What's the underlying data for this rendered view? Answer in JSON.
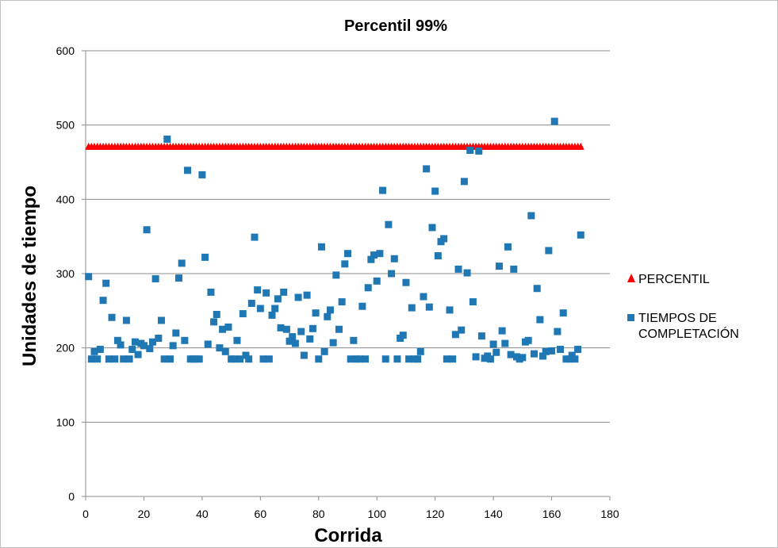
{
  "chart_data": {
    "type": "scatter",
    "title": "Percentil 99%",
    "xlabel": "Corrida",
    "ylabel": "Unidades de tiempo",
    "xlim": [
      0,
      180
    ],
    "ylim": [
      0,
      600
    ],
    "xticks": [
      0,
      20,
      40,
      60,
      80,
      100,
      120,
      140,
      160,
      180
    ],
    "yticks": [
      0,
      100,
      200,
      300,
      400,
      500,
      600
    ],
    "grid": "horizontal",
    "legend": "right",
    "series": [
      {
        "name": "PERCENTIL",
        "marker": "triangle",
        "color": "#ff0000",
        "x_start": 1,
        "x_end": 170,
        "constant_y": 471
      },
      {
        "name": "TIEMPOS DE COMPLETACIÓN",
        "marker": "square",
        "color": "#1f77b4",
        "x": [
          1,
          2,
          3,
          4,
          5,
          6,
          7,
          8,
          9,
          10,
          11,
          12,
          13,
          14,
          15,
          16,
          17,
          18,
          19,
          20,
          21,
          22,
          23,
          24,
          25,
          26,
          27,
          28,
          29,
          30,
          31,
          32,
          33,
          34,
          35,
          36,
          37,
          38,
          39,
          40,
          41,
          42,
          43,
          44,
          45,
          46,
          47,
          48,
          49,
          50,
          51,
          52,
          53,
          54,
          55,
          56,
          57,
          58,
          59,
          60,
          61,
          62,
          63,
          64,
          65,
          66,
          67,
          68,
          69,
          70,
          71,
          72,
          73,
          74,
          75,
          76,
          77,
          78,
          79,
          80,
          81,
          82,
          83,
          84,
          85,
          86,
          87,
          88,
          89,
          90,
          91,
          92,
          93,
          94,
          95,
          96,
          97,
          98,
          99,
          100,
          101,
          102,
          103,
          104,
          105,
          106,
          107,
          108,
          109,
          110,
          111,
          112,
          113,
          114,
          115,
          116,
          117,
          118,
          119,
          120,
          121,
          122,
          123,
          124,
          125,
          126,
          127,
          128,
          129,
          130,
          131,
          132,
          133,
          134,
          135,
          136,
          137,
          138,
          139,
          140,
          141,
          142,
          143,
          144,
          145,
          146,
          147,
          148,
          149,
          150,
          151,
          152,
          153,
          154,
          155,
          156,
          157,
          158,
          159,
          160,
          161,
          162,
          163,
          164,
          165,
          166,
          167,
          168,
          169,
          170
        ],
        "y": [
          296,
          185,
          195,
          185,
          198,
          264,
          287,
          185,
          241,
          185,
          210,
          204,
          185,
          237,
          185,
          198,
          208,
          191,
          206,
          203,
          359,
          199,
          208,
          293,
          213,
          237,
          185,
          481,
          185,
          203,
          220,
          294,
          314,
          210,
          439,
          185,
          185,
          185,
          185,
          433,
          322,
          205,
          275,
          235,
          245,
          200,
          225,
          195,
          228,
          185,
          185,
          210,
          185,
          246,
          190,
          185,
          260,
          349,
          278,
          253,
          185,
          274,
          185,
          244,
          253,
          266,
          227,
          275,
          225,
          209,
          215,
          206,
          268,
          222,
          190,
          271,
          212,
          226,
          247,
          185,
          336,
          195,
          242,
          251,
          207,
          298,
          225,
          262,
          313,
          327,
          185,
          210,
          185,
          185,
          256,
          185,
          281,
          319,
          325,
          290,
          327,
          412,
          185,
          366,
          300,
          320,
          185,
          213,
          217,
          288,
          185,
          254,
          185,
          185,
          195,
          269,
          441,
          255,
          362,
          411,
          324,
          343,
          347,
          185,
          251,
          185,
          218,
          306,
          224,
          424,
          301,
          466,
          262,
          188,
          465,
          216,
          186,
          189,
          185,
          205,
          194,
          310,
          223,
          206,
          336,
          191,
          306,
          188,
          185,
          187,
          208,
          210,
          378,
          192,
          280,
          238,
          189,
          195,
          331,
          196,
          505,
          222,
          198,
          247,
          185,
          185,
          190,
          185,
          198,
          352
        ]
      }
    ]
  }
}
